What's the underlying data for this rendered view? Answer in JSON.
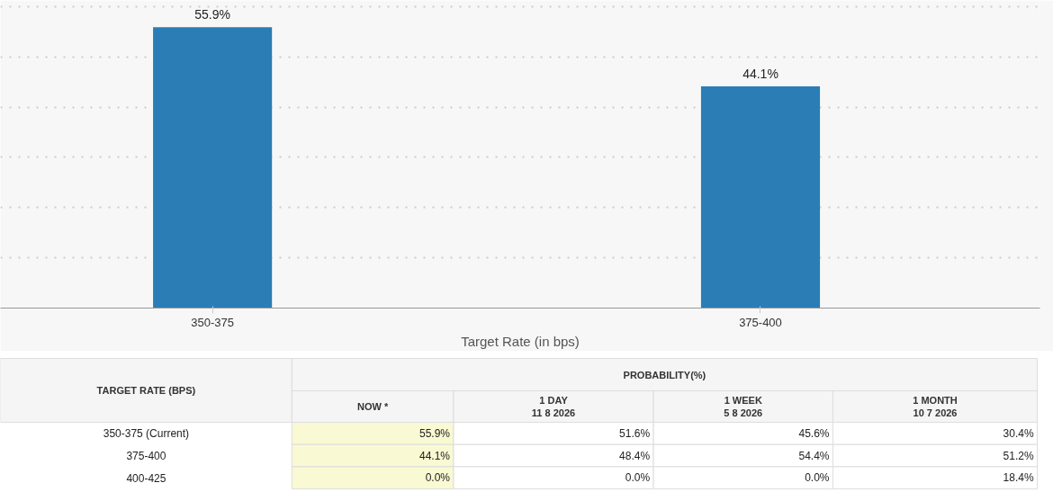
{
  "chart_data": [
    {
      "type": "bar",
      "xlabel": "Target Rate (in bps)",
      "categories": [
        "350-375",
        "375-400"
      ],
      "values": [
        55.9,
        44.1
      ],
      "color": "#2a7db5",
      "value_labels": [
        "55.9%",
        "44.1%"
      ],
      "grid": "y",
      "tick_labels": "x"
    },
    {
      "type": "heatmap",
      "title": "PROBABILITY(%)",
      "ylabel": "TARGET RATE (BPS)",
      "categories": [
        "NOW *",
        "1 DAY\n11 8 2026",
        "1 WEEK\n5 8 2026",
        "1 MONTH\n10 7 2026"
      ],
      "y_categories": [
        "350-375 (Current)",
        "375-400",
        "400-425"
      ],
      "cells": [
        [
          55.9,
          51.6,
          45.6,
          30.4
        ],
        [
          44.1,
          48.4,
          54.4,
          51.2
        ],
        [
          0.0,
          0.0,
          0.0,
          18.4
        ]
      ],
      "cell_labels": [
        [
          "55.9%",
          "51.6%",
          "45.6%",
          "30.4%"
        ],
        [
          "44.1%",
          "48.4%",
          "54.4%",
          "51.2%"
        ],
        [
          "0.0%",
          "0.0%",
          "0.0%",
          "18.4%"
        ]
      ],
      "colors": [
        "#f9f9d3",
        "#ffffff",
        "#ffffff",
        "#ffffff"
      ]
    }
  ]
}
